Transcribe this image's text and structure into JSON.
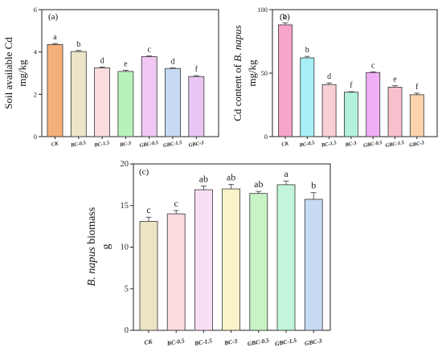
{
  "chart_data": [
    {
      "type": "bar",
      "panel_label": "(a)",
      "categories": [
        "CK",
        "BC-0.5",
        "BC-1.5",
        "BC-3",
        "GBC-0.5",
        "GBC-1.5",
        "GBC-3"
      ],
      "values": [
        4.35,
        4.02,
        3.25,
        3.08,
        3.78,
        3.22,
        2.84
      ],
      "errors": [
        0.05,
        0.05,
        0.04,
        0.06,
        0.03,
        0.03,
        0.04
      ],
      "significance": [
        "a",
        "b",
        "d",
        "e",
        "c",
        "d",
        "f"
      ],
      "colors": [
        "#f5b07a",
        "#ede5c9",
        "#fadcdf",
        "#b9f2b9",
        "#f0c8f3",
        "#c6daf3",
        "#e9c5f3"
      ],
      "ylabel_main": "Soil available Cd",
      "ylabel_unit": "mg/kg",
      "ylim": [
        0,
        6
      ],
      "yticks": [
        "0",
        "2",
        "4",
        "6"
      ]
    },
    {
      "type": "bar",
      "panel_label": "(b)",
      "categories": [
        "CK",
        "BC-0.5",
        "BC-1.5",
        "BC-3",
        "GBC-0.5",
        "GBC-1.5",
        "GBC-3"
      ],
      "values": [
        88,
        62,
        41,
        35,
        50.5,
        39,
        33
      ],
      "errors": [
        1.5,
        1.2,
        1.3,
        0.4,
        0.5,
        1.1,
        1.2
      ],
      "significance": [
        "a",
        "b",
        "d",
        "f",
        "c",
        "e",
        "f"
      ],
      "colors": [
        "#f8a3c8",
        "#a8f0f6",
        "#f9cfd6",
        "#b2f1dd",
        "#efaff5",
        "#f8c0cc",
        "#fbd3ad"
      ],
      "ylabel_main": "Cd content of",
      "ylabel_species": "B. napus",
      "ylabel_unit": "mg/kg",
      "ylim": [
        0,
        100
      ],
      "yticks": [
        "0",
        "50",
        "100"
      ]
    },
    {
      "type": "bar",
      "panel_label": "(c)",
      "categories": [
        "CK",
        "BC-0.5",
        "BC-1.5",
        "BC-3",
        "GBC-0.5",
        "GBC-1.5",
        "GBC-3"
      ],
      "values": [
        13.1,
        14.0,
        16.9,
        17.0,
        16.45,
        17.5,
        15.75
      ],
      "errors": [
        0.5,
        0.4,
        0.45,
        0.55,
        0.25,
        0.45,
        0.8
      ],
      "significance": [
        "c",
        "c",
        "ab",
        "ab",
        "ab",
        "a",
        "b"
      ],
      "colors": [
        "#ede4c6",
        "#fbdcdf",
        "#f9dff6",
        "#f8f3c8",
        "#c7f3c7",
        "#c2f5d9",
        "#c7daf3"
      ],
      "ylabel_species": "B. napus",
      "ylabel_main": "biomass",
      "ylabel_unit": "g",
      "ylim": [
        0,
        20
      ],
      "yticks": [
        "0",
        "5",
        "10",
        "15",
        "20"
      ]
    }
  ]
}
